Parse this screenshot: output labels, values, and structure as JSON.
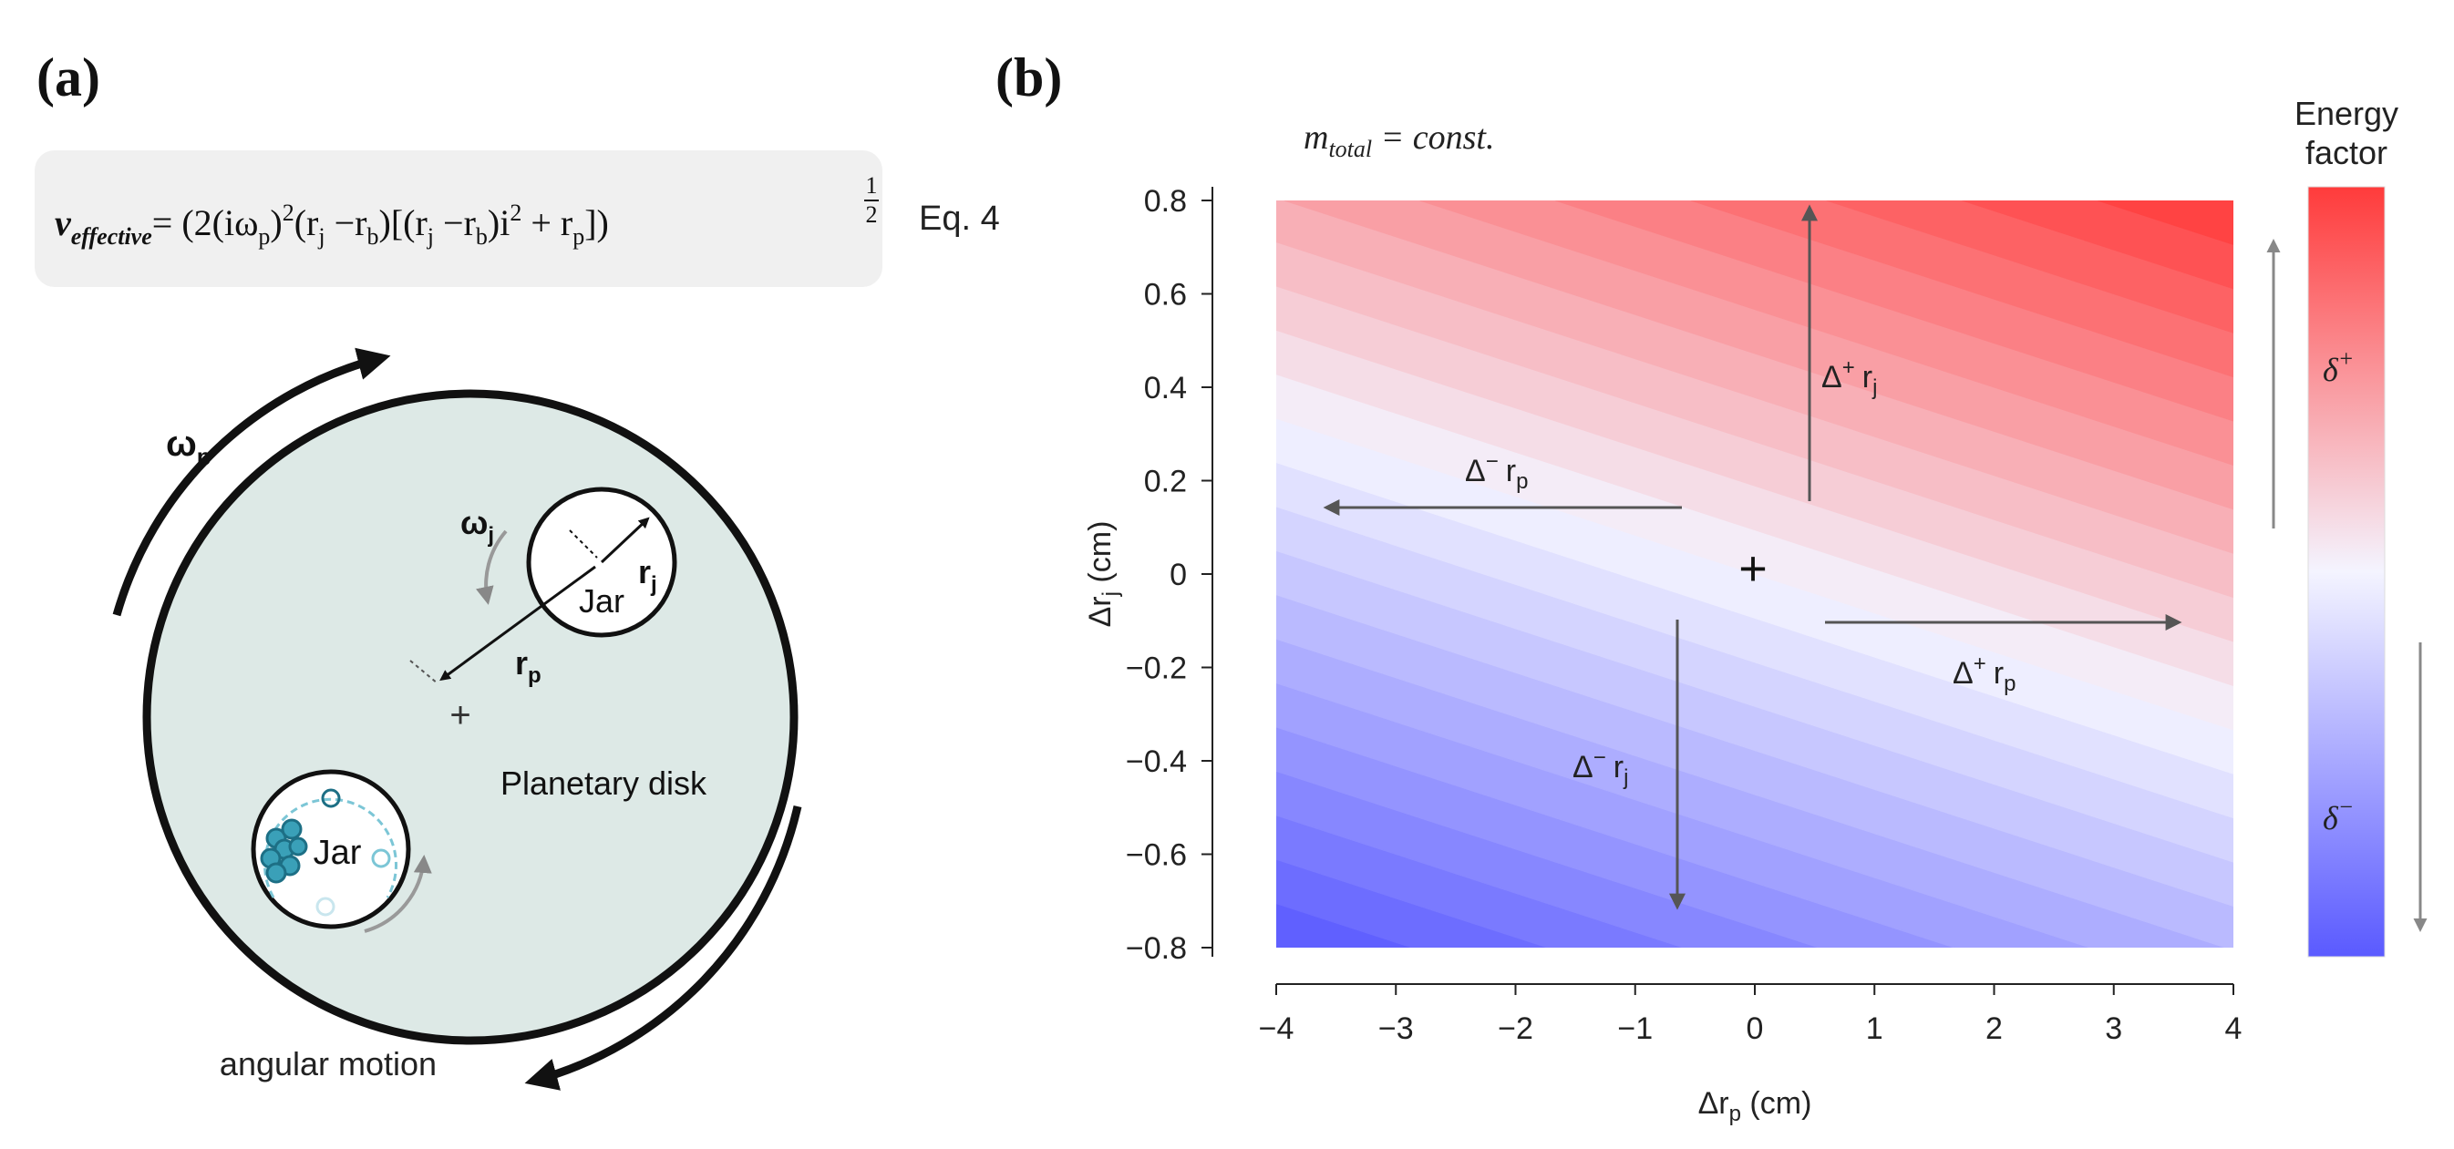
{
  "panel_a": {
    "label": "(a)",
    "equation": {
      "lhs": "v",
      "lhs_sub": "effective",
      "rhs_a": "= (2(iω",
      "rhs_a_sub": "p",
      "rhs_b": ")",
      "rhs_b_sup": "2",
      "rhs_c": "(r",
      "rhs_c_sub": "j",
      "rhs_d": " −r",
      "rhs_d_sub": "b",
      "rhs_e": ")[(r",
      "rhs_e_sub": "j",
      "rhs_f": " −r",
      "rhs_f_sub": "b",
      "rhs_g": ")i",
      "rhs_g_sup": "2",
      "rhs_h": " + r",
      "rhs_h_sub": "p",
      "rhs_i": "])",
      "exp_num": "1",
      "exp_den": "2",
      "tag": "Eq. 4"
    },
    "diagram": {
      "omega_p": "ω",
      "omega_p_sub": "p",
      "omega_j": "ω",
      "omega_j_sub": "j",
      "r_j": "r",
      "r_j_sub": "j",
      "r_p": "r",
      "r_p_sub": "p",
      "jar_top": "Jar",
      "jar_bottom": "Jar",
      "disk_label": "Planetary disk",
      "angular_motion": "angular motion",
      "center_mark": "+"
    }
  },
  "panel_b": {
    "label": "(b)",
    "constraint": "m",
    "constraint_sub": "total",
    "constraint_rest": " = const.",
    "center_mark": "+",
    "arrows": {
      "plus_rj": {
        "delta": "Δ",
        "sign": "+",
        "var": "r",
        "sub": "j"
      },
      "minus_rp": {
        "delta": "Δ",
        "sign": "−",
        "var": "r",
        "sub": "p"
      },
      "plus_rp": {
        "delta": "Δ",
        "sign": "+",
        "var": "r",
        "sub": "p"
      },
      "minus_rj": {
        "delta": "Δ",
        "sign": "−",
        "var": "r",
        "sub": "j"
      }
    },
    "colorbar": {
      "title_line1": "Energy",
      "title_line2": "factor",
      "plus_label": "δ",
      "plus_sup": "+",
      "minus_label": "δ",
      "minus_sup": "−",
      "color_high": "#ff3b3b",
      "color_mid": "#f4f4ff",
      "color_low": "#5a5aff"
    }
  },
  "chart_data": {
    "type": "heatmap",
    "title": "",
    "xlabel": "Δr",
    "xlabel_sub": "p",
    "xlabel_unit": " (cm)",
    "ylabel": "Δr",
    "ylabel_sub": "j",
    "ylabel_unit": " (cm)",
    "xlim": [
      -4,
      4
    ],
    "ylim": [
      -0.8,
      0.8
    ],
    "x_ticks": [
      -4,
      -3,
      -2,
      -1,
      0,
      1,
      2,
      3,
      4
    ],
    "x_tick_labels": [
      "−4",
      "−3",
      "−2",
      "−1",
      "0",
      "1",
      "2",
      "3",
      "4"
    ],
    "y_ticks": [
      0.8,
      0.6,
      0.4,
      0.2,
      0,
      -0.2,
      -0.4,
      -0.6,
      -0.8
    ],
    "y_tick_labels": [
      "0.8",
      "0.6",
      "0.4",
      "0.2",
      "0",
      "−0.2",
      "−0.4",
      "−0.6",
      "−0.8"
    ],
    "field": "energy factor increases with Δr_p and Δr_j; zero contour passes through (0, 0)",
    "field_coefficients": {
      "dx": 1,
      "dy": 2.4
    },
    "contour_levels": 24,
    "colormap": [
      "#5a5aff",
      "#f4f4ff",
      "#ff3b3b"
    ]
  }
}
